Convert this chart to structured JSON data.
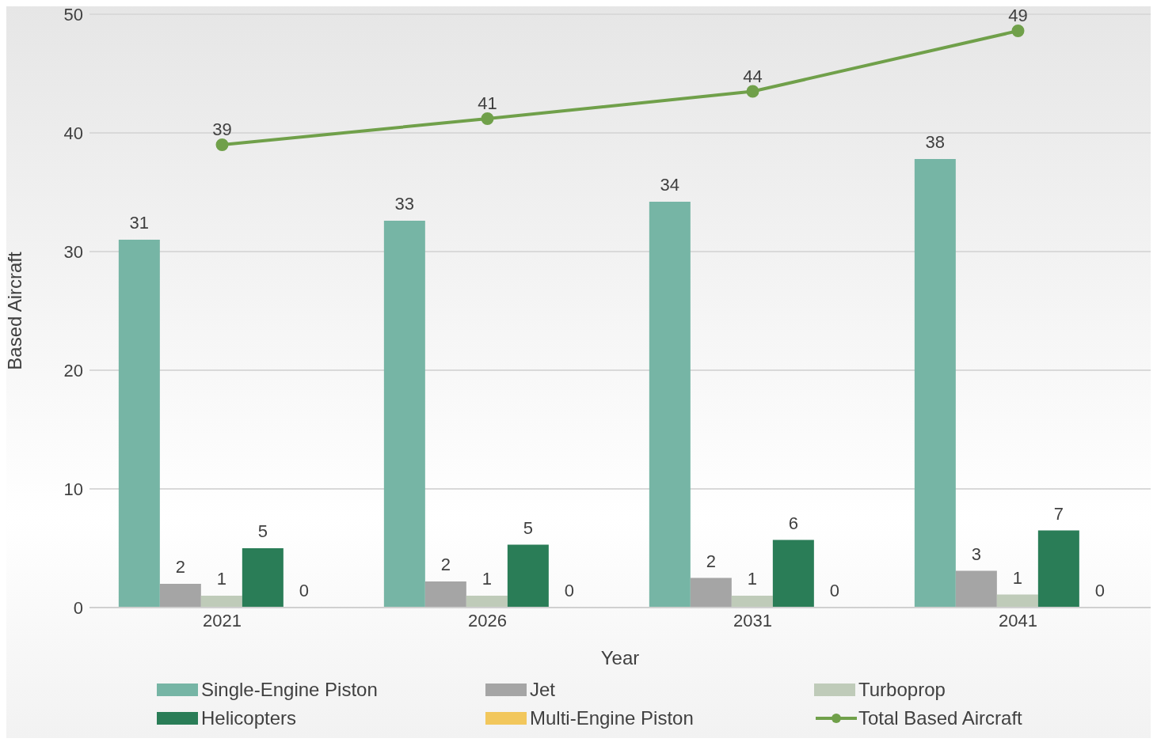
{
  "chart_data": {
    "type": "bar",
    "xlabel": "Year",
    "ylabel": "Based Aircraft",
    "categories": [
      "2021",
      "2026",
      "2031",
      "2041"
    ],
    "ylim": [
      0,
      50
    ],
    "yticks": [
      0,
      10,
      20,
      30,
      40,
      50
    ],
    "grid": "y",
    "legend": "bottom",
    "marker": "circle",
    "series": [
      {
        "name": "Single-Engine Piston",
        "color": "#76b5a5",
        "values": [
          31.0,
          32.6,
          34.2,
          37.8
        ],
        "value_labels": [
          "31",
          "33",
          "34",
          "38"
        ]
      },
      {
        "name": "Jet",
        "color": "#a5a5a5",
        "values": [
          2.0,
          2.2,
          2.5,
          3.1
        ],
        "value_labels": [
          "2",
          "2",
          "2",
          "3"
        ]
      },
      {
        "name": "Turboprop",
        "color": "#bfcbb9",
        "values": [
          1.0,
          1.0,
          1.0,
          1.1
        ],
        "value_labels": [
          "1",
          "1",
          "1",
          "1"
        ]
      },
      {
        "name": "Helicopters",
        "color": "#2a7d57",
        "values": [
          5.0,
          5.3,
          5.7,
          6.5
        ],
        "value_labels": [
          "5",
          "5",
          "6",
          "7"
        ]
      },
      {
        "name": "Multi-Engine Piston",
        "color": "#f2c75c",
        "values": [
          0,
          0,
          0,
          0
        ],
        "value_labels": [
          "0",
          "0",
          "0",
          "0"
        ]
      },
      {
        "name": "Total Based Aircraft",
        "type": "line",
        "color": "#70a04a",
        "values": [
          39.0,
          41.2,
          43.5,
          48.6
        ],
        "value_labels": [
          "39",
          "41",
          "44",
          "49"
        ]
      }
    ]
  }
}
